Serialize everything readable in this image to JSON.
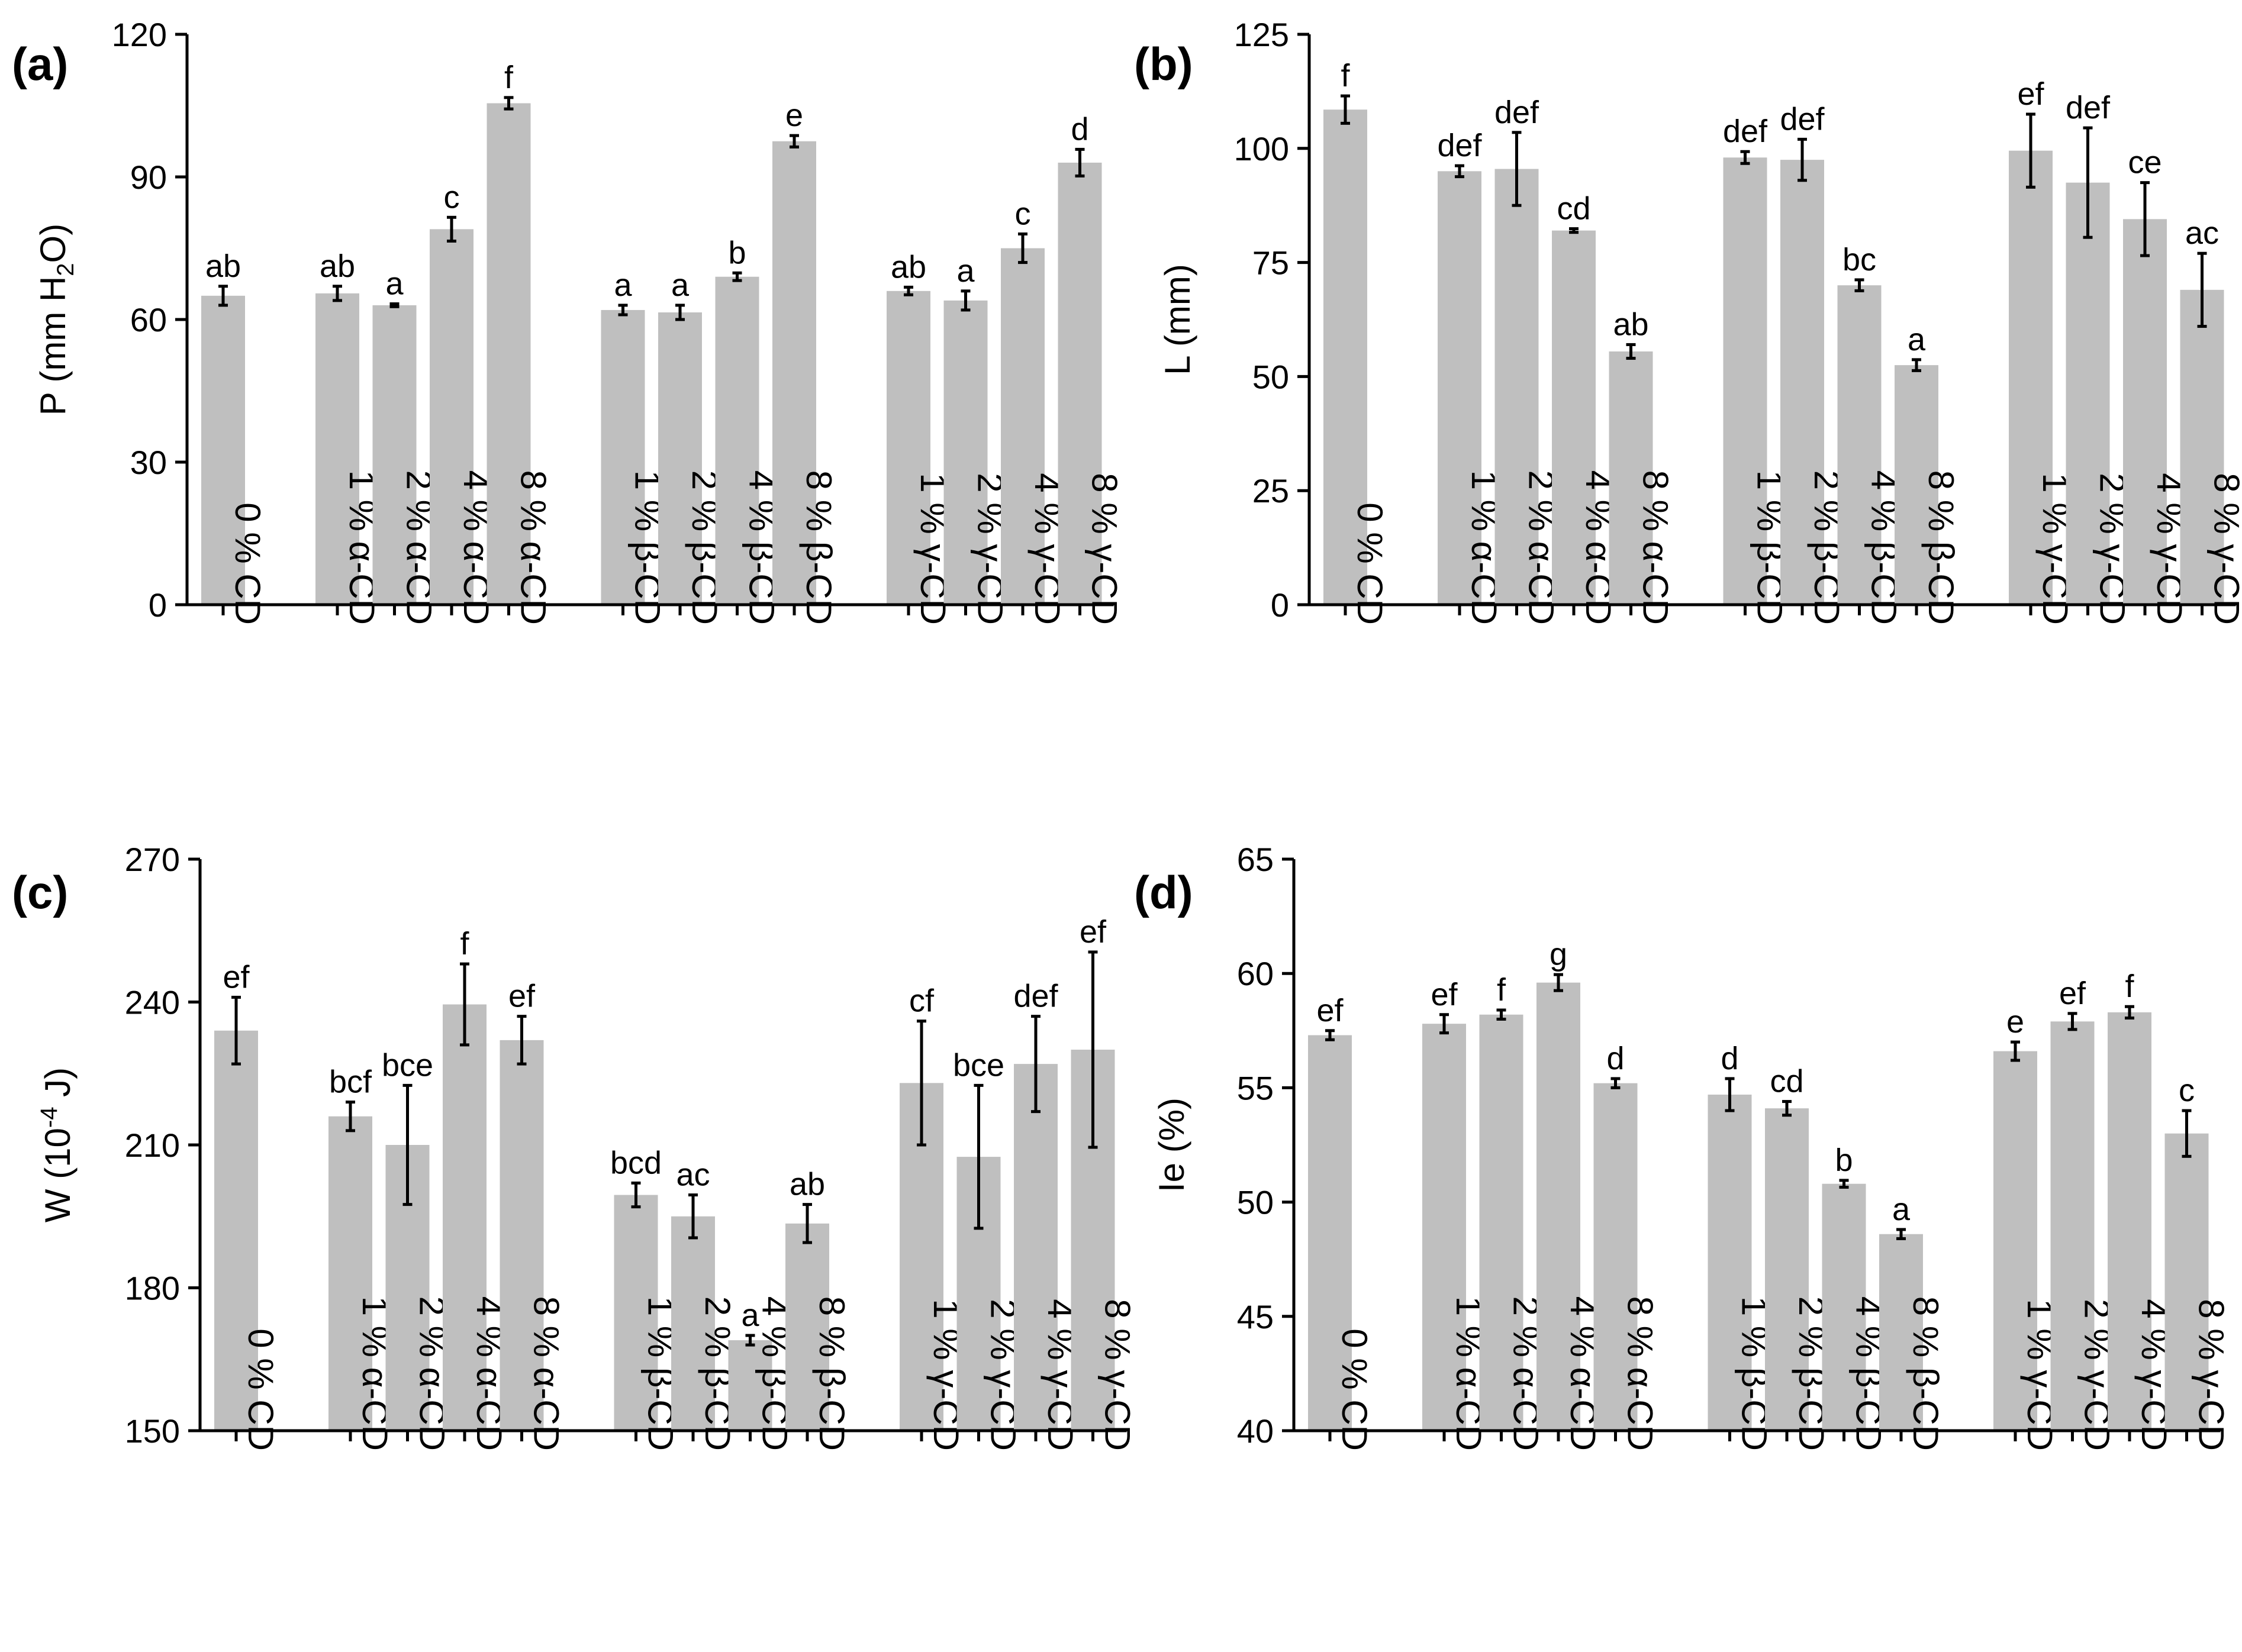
{
  "colors": {
    "bar": "#bfbfbf",
    "axis": "#000000",
    "errorbar": "#000000"
  },
  "chart_data": [
    {
      "type": "bar",
      "panel_label": "(a)",
      "ylabel_main": "P (mm H",
      "ylabel_sub": "2",
      "ylabel_end": "O)",
      "ylim": [
        0,
        120
      ],
      "yticks": [
        0,
        30,
        60,
        90,
        120
      ],
      "categories": [
        "0 % CD",
        "1 % α-CD",
        "2 % α-CD",
        "4 % α-CD",
        "8 % α-CD",
        "1 % β-CD",
        "2 % β-CD",
        "4 % β-CD",
        "8 % β-CD",
        "1 % γ-CD",
        "2 % γ-CD",
        "4 % γ-CD",
        "8 % γ-CD"
      ],
      "values": [
        65,
        65.5,
        63,
        79,
        105.5,
        62,
        61.5,
        69,
        97.5,
        66,
        64,
        75,
        93
      ],
      "errors": [
        2.0,
        1.5,
        0.3,
        2.5,
        1.2,
        1.0,
        1.5,
        0.8,
        1.2,
        0.8,
        2.0,
        3.0,
        2.8
      ],
      "letters": [
        "ab",
        "ab",
        "a",
        "c",
        "f",
        "a",
        "a",
        "b",
        "e",
        "ab",
        "a",
        "c",
        "d"
      ]
    },
    {
      "type": "bar",
      "panel_label": "(b)",
      "ylabel_main": "L (mm)",
      "ylabel_sub": "",
      "ylabel_end": "",
      "ylim": [
        0,
        125
      ],
      "yticks": [
        0,
        25,
        50,
        75,
        100,
        125
      ],
      "categories": [
        "0 % CD",
        "1 % α-CD",
        "2 % α-CD",
        "4 % α-CD",
        "8 % α-CD",
        "1 % β-CD",
        "2 % β-CD",
        "4 % β-CD",
        "8 % β-CD",
        "1 % γ-CD",
        "2 % γ-CD",
        "4 % γ-CD",
        "8 % γ-CD"
      ],
      "values": [
        108.5,
        95,
        95.5,
        82,
        55.5,
        98,
        97.5,
        70,
        52.5,
        99.5,
        92.5,
        84.5,
        69
      ],
      "errors": [
        3.0,
        1.2,
        8.0,
        0.4,
        1.5,
        1.3,
        4.5,
        1.2,
        1.2,
        8.0,
        12.0,
        8.0,
        8.0
      ],
      "letters": [
        "f",
        "def",
        "def",
        "cd",
        "ab",
        "def",
        "def",
        "bc",
        "a",
        "ef",
        "def",
        "ce",
        "ac"
      ]
    },
    {
      "type": "bar",
      "panel_label": "(c)",
      "ylabel_main": "W (10",
      "ylabel_sup": "-4",
      "ylabel_end": " J)",
      "ylim": [
        150,
        270
      ],
      "yticks": [
        150,
        180,
        210,
        240,
        270
      ],
      "categories": [
        "0 % CD",
        "1 % α-CD",
        "2 % α-CD",
        "4 % α-CD",
        "8 % α-CD",
        "1 % β-CD",
        "2 % β-CD",
        "4 % β-CD",
        "8 % β-CD",
        "1 % γ-CD",
        "2 % γ-CD",
        "4 % γ-CD",
        "8 % γ-CD"
      ],
      "values": [
        234,
        216,
        210,
        239.5,
        232,
        199.5,
        195,
        169,
        193.5,
        223,
        207.5,
        227,
        230
      ],
      "errors": [
        7.0,
        3.0,
        12.5,
        8.5,
        5.0,
        2.5,
        4.5,
        1.0,
        4.0,
        13.0,
        15.0,
        10.0,
        20.5
      ],
      "letters": [
        "ef",
        "bcf",
        "bce",
        "f",
        "ef",
        "bcd",
        "ac",
        "a",
        "ab",
        "cf",
        "bce",
        "def",
        "ef"
      ]
    },
    {
      "type": "bar",
      "panel_label": "(d)",
      "ylabel_main": "Ie (%)",
      "ylabel_sub": "",
      "ylabel_end": "",
      "ylim": [
        40,
        65
      ],
      "yticks": [
        40,
        45,
        50,
        55,
        60,
        65
      ],
      "categories": [
        "0 % CD",
        "1 % α-CD",
        "2 % α-CD",
        "4 % α-CD",
        "8 % α-CD",
        "1 % β-CD",
        "2 % β-CD",
        "4 % β-CD",
        "8 % β-CD",
        "1 % γ-CD",
        "2 % γ-CD",
        "4 % γ-CD",
        "8 % γ-CD"
      ],
      "values": [
        57.3,
        57.8,
        58.2,
        59.6,
        55.2,
        54.7,
        54.1,
        50.8,
        48.6,
        56.6,
        57.9,
        58.3,
        53
      ],
      "errors": [
        0.2,
        0.4,
        0.2,
        0.35,
        0.2,
        0.7,
        0.3,
        0.15,
        0.2,
        0.4,
        0.35,
        0.25,
        1.0
      ],
      "letters": [
        "ef",
        "ef",
        "f",
        "g",
        "d",
        "d",
        "cd",
        "b",
        "a",
        "e",
        "ef",
        "f",
        "c"
      ]
    }
  ]
}
